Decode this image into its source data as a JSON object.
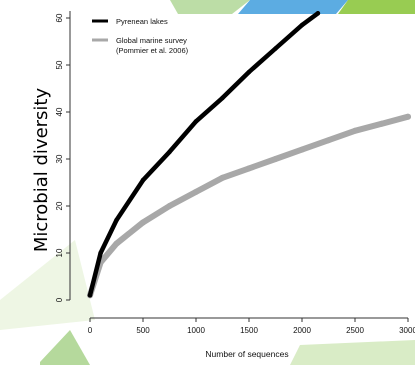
{
  "slide": {
    "ylabel_overlay": "Microbial diversity",
    "accent_colors": [
      "#8dc63f",
      "#4aa3df",
      "#b5d99c"
    ]
  },
  "chart_data": {
    "type": "scatter",
    "xlabel": "Number of sequences",
    "ylabel": "",
    "xlim": [
      0,
      3000
    ],
    "ylim": [
      0,
      62
    ],
    "x_ticks": [
      0,
      500,
      1000,
      1500,
      2000,
      2500,
      3000
    ],
    "y_ticks": [
      0,
      10,
      20,
      30,
      40,
      50,
      60
    ],
    "legend": {
      "position": "top-left",
      "entries": [
        {
          "label": "Pyrenean lakes",
          "color": "#000000"
        },
        {
          "label": "Global marine survey",
          "sublabel": "(Pommier et al. 2006)",
          "color": "#a8a8a8"
        }
      ]
    },
    "series": [
      {
        "name": "Pyrenean lakes",
        "color": "#000000",
        "x": [
          0,
          100,
          250,
          500,
          750,
          1000,
          1250,
          1500,
          1750,
          2000,
          2150
        ],
        "y": [
          1,
          10,
          17,
          25.5,
          31.5,
          38,
          43,
          48.5,
          53.5,
          58.5,
          61
        ]
      },
      {
        "name": "Global marine survey",
        "color": "#a8a8a8",
        "x": [
          0,
          100,
          250,
          500,
          750,
          1000,
          1250,
          1500,
          1750,
          2000,
          2250,
          2500,
          2750,
          3000
        ],
        "y": [
          1,
          8,
          12,
          16.5,
          20,
          23,
          26,
          28,
          30,
          32,
          34,
          36,
          37.5,
          39
        ]
      }
    ]
  }
}
